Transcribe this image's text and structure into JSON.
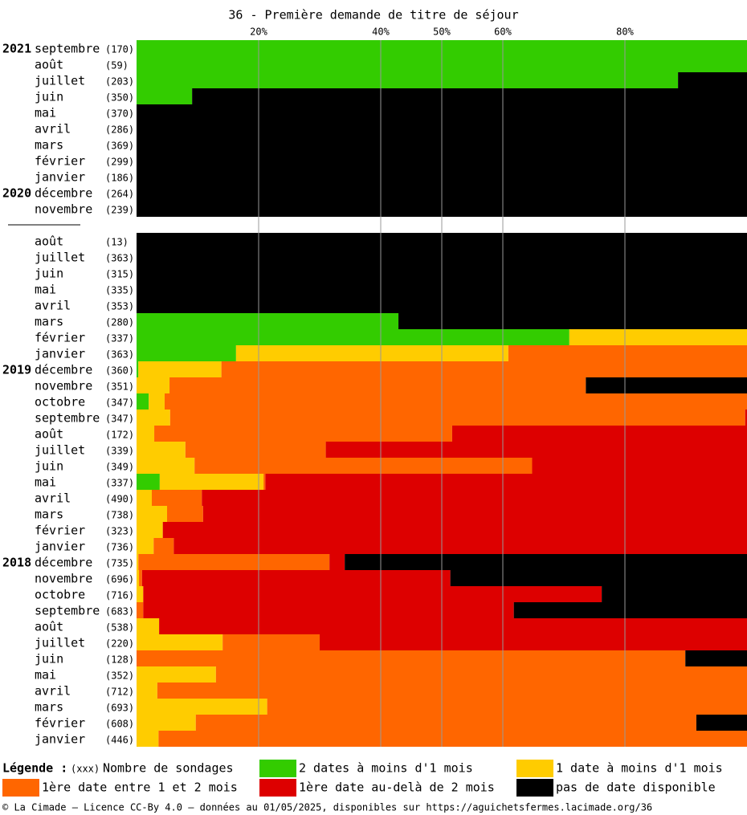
{
  "chart_data": {
    "type": "stacked_barh",
    "title": "36 - Première demande de titre de séjour",
    "years": [
      "2021",
      null,
      null,
      null,
      null,
      null,
      null,
      null,
      null,
      "2020",
      null,
      null,
      null,
      null,
      null,
      null,
      null,
      null,
      null,
      null,
      "2019",
      null,
      null,
      null,
      null,
      null,
      null,
      null,
      null,
      null,
      null,
      null,
      "2018",
      null,
      null,
      null,
      null,
      null,
      null,
      null,
      null,
      null,
      null,
      null
    ],
    "categories": [
      "septembre",
      "août",
      "juillet",
      "juin",
      "mai",
      "avril",
      "mars",
      "février",
      "janvier",
      "décembre",
      "novembre",
      null,
      "août",
      "juillet",
      "juin",
      "mai",
      "avril",
      "mars",
      "février",
      "janvier",
      "décembre",
      "novembre",
      "octobre",
      "septembre",
      "août",
      "juillet",
      "juin",
      "mai",
      "avril",
      "mars",
      "février",
      "janvier",
      "décembre",
      "novembre",
      "octobre",
      "septembre",
      "août",
      "juillet",
      "juin",
      "mai",
      "avril",
      "mars",
      "février",
      "janvier"
    ],
    "counts": [
      "(170)",
      "(59)",
      "(203)",
      "(350)",
      "(370)",
      "(286)",
      "(369)",
      "(299)",
      "(186)",
      "(264)",
      "(239)",
      null,
      "(13)",
      "(363)",
      "(315)",
      "(335)",
      "(353)",
      "(280)",
      "(337)",
      "(363)",
      "(360)",
      "(351)",
      "(347)",
      "(347)",
      "(172)",
      "(339)",
      "(349)",
      "(337)",
      "(490)",
      "(738)",
      "(323)",
      "(736)",
      "(735)",
      "(696)",
      "(716)",
      "(683)",
      "(538)",
      "(220)",
      "(128)",
      "(352)",
      "(712)",
      "(693)",
      "(608)",
      "(446)"
    ],
    "series": [
      {
        "name": "2 dates à moins d'1 mois",
        "color": "#33cc00",
        "values": [
          100,
          100,
          88.7,
          9.1,
          0,
          0,
          0,
          0,
          0,
          0,
          0,
          null,
          0,
          0,
          0,
          0,
          0,
          42.9,
          70.9,
          16.3,
          0.3,
          0,
          2.0,
          0,
          0,
          0,
          0,
          3.8,
          0,
          0,
          0,
          0,
          0,
          0,
          0,
          0,
          0,
          0,
          0,
          0,
          0,
          0,
          0,
          0
        ]
      },
      {
        "name": "1 date à moins d'1 mois",
        "color": "#ffcc00",
        "values": [
          0,
          0,
          0,
          0,
          0,
          0,
          0,
          0,
          0,
          0,
          0,
          null,
          0,
          0,
          0,
          0,
          0,
          0,
          29.1,
          44.6,
          13.6,
          5.4,
          2.6,
          5.5,
          2.9,
          8.0,
          9.5,
          17.0,
          2.5,
          5.0,
          4.3,
          2.8,
          0.3,
          0.4,
          1.1,
          0,
          3.7,
          14.1,
          0,
          13.0,
          3.4,
          21.4,
          9.7,
          3.6
        ]
      },
      {
        "name": "1ère date entre 1 et 2 mois",
        "color": "#ff6600",
        "values": [
          0,
          0,
          0,
          0,
          0,
          0,
          0,
          0,
          0,
          0,
          0,
          null,
          0,
          0,
          0,
          0,
          0,
          0,
          0,
          39.1,
          86.1,
          68.2,
          95.4,
          94.2,
          48.8,
          23.0,
          55.3,
          0.3,
          8.2,
          5.9,
          0,
          3.3,
          31.3,
          0.5,
          0,
          1.1,
          0,
          15.9,
          89.9,
          87.0,
          96.6,
          78.6,
          82.0,
          96.4
        ]
      },
      {
        "name": "1ère date au-delà de 2 mois",
        "color": "#dd0000",
        "values": [
          0,
          0,
          0,
          0,
          0,
          0,
          0,
          0,
          0,
          0,
          0,
          null,
          0,
          0,
          0,
          0,
          0,
          0,
          0,
          0,
          0,
          0,
          0,
          0.3,
          48.3,
          69.0,
          35.2,
          78.9,
          89.3,
          89.1,
          95.7,
          93.9,
          2.5,
          50.5,
          75.1,
          60.7,
          96.3,
          70.0,
          0,
          0,
          0,
          0,
          0,
          0
        ]
      },
      {
        "name": "pas de date disponible",
        "color": "#000000",
        "values": [
          0,
          0,
          11.3,
          90.9,
          100,
          100,
          100,
          100,
          100,
          100,
          100,
          null,
          100,
          100,
          100,
          100,
          100,
          57.1,
          0,
          0,
          0,
          26.4,
          0,
          0,
          0,
          0,
          0,
          0,
          0,
          0,
          0,
          0,
          65.9,
          48.6,
          23.8,
          38.2,
          0,
          0,
          10.1,
          0,
          0,
          0,
          8.3,
          0
        ]
      }
    ],
    "xlim": [
      0,
      100
    ],
    "xticks": [
      {
        "value": 20,
        "label": "20%"
      },
      {
        "value": 40,
        "label": "40%"
      },
      {
        "value": 50,
        "label": "50%"
      },
      {
        "value": 60,
        "label": "60%"
      },
      {
        "value": 80,
        "label": "80%"
      }
    ],
    "grid": true,
    "legend_title": "Légende :",
    "legend_count_marker": "(xxx)",
    "legend_count_text": "Nombre de sondages",
    "footer": "© La Cimade — Licence CC-By 4.0 — données au 01/05/2025, disponibles sur https://aguichetsfermes.lacimade.org/36"
  }
}
